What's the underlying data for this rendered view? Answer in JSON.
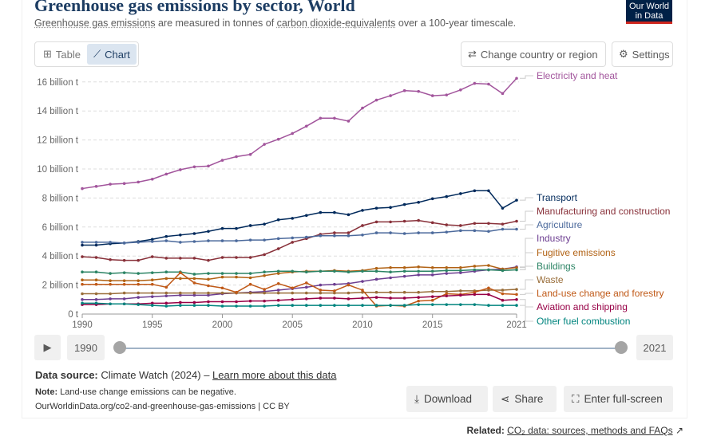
{
  "header": {
    "title": "Greenhouse gas emissions by sector, World",
    "subtitle_link1": "Greenhouse gas emissions",
    "subtitle_mid": " are measured in tonnes of ",
    "subtitle_link2": "carbon dioxide-equivalents",
    "subtitle_end": " over a 100-year timescale.",
    "logo_line1": "Our World",
    "logo_line2": "in Data"
  },
  "toolbar": {
    "table_label": "Table",
    "chart_label": "Chart",
    "change_region_label": "Change country or region",
    "settings_label": "Settings"
  },
  "timeline": {
    "start": "1990",
    "end": "2021"
  },
  "footer": {
    "source_label": "Data source:",
    "source_text": " Climate Watch (2024) – ",
    "learn_more": "Learn more about this data",
    "note_label": "Note:",
    "note_text": " Land-use change emissions can be negative.",
    "url": "OurWorldinData.org/co2-and-greenhouse-gas-emissions | CC BY",
    "download": "Download",
    "share": "Share",
    "fullscreen": "Enter full-screen",
    "related_label": "Related:",
    "related_link": "CO₂ data: sources, methods and FAQs"
  },
  "chart_data": {
    "type": "line",
    "title": "Greenhouse gas emissions by sector, World",
    "x": [
      1990,
      1991,
      1992,
      1993,
      1994,
      1995,
      1996,
      1997,
      1998,
      1999,
      2000,
      2001,
      2002,
      2003,
      2004,
      2005,
      2006,
      2007,
      2008,
      2009,
      2010,
      2011,
      2012,
      2013,
      2014,
      2015,
      2016,
      2017,
      2018,
      2019,
      2020,
      2021
    ],
    "x_ticks": [
      "1990",
      "1995",
      "2000",
      "2005",
      "2010",
      "2015",
      "2021"
    ],
    "y_ticks": [
      "0 t",
      "2 billion t",
      "4 billion t",
      "6 billion t",
      "8 billion t",
      "10 billion t",
      "12 billion t",
      "14 billion t",
      "16 billion t"
    ],
    "y_unit": "billion t",
    "ylim": [
      0,
      16.5
    ],
    "grid": "horizontal dashed",
    "legend": "right, inline labels",
    "series": [
      {
        "name": "Electricity and heat",
        "color": "#a2559c",
        "values": [
          8.65,
          8.8,
          8.95,
          9.0,
          9.1,
          9.3,
          9.65,
          9.95,
          10.15,
          10.2,
          10.6,
          10.85,
          11.0,
          11.7,
          12.05,
          12.45,
          12.95,
          13.5,
          13.5,
          13.3,
          14.2,
          14.75,
          15.05,
          15.4,
          15.35,
          15.05,
          15.1,
          15.45,
          15.9,
          15.85,
          15.2,
          16.25
        ]
      },
      {
        "name": "Transport",
        "color": "#00295b",
        "values": [
          4.75,
          4.75,
          4.85,
          4.9,
          5.0,
          5.15,
          5.35,
          5.45,
          5.55,
          5.7,
          5.9,
          5.9,
          6.1,
          6.2,
          6.5,
          6.6,
          6.8,
          7.0,
          7.0,
          6.85,
          7.15,
          7.3,
          7.35,
          7.55,
          7.7,
          7.95,
          8.1,
          8.3,
          8.5,
          8.5,
          7.3,
          7.85
        ]
      },
      {
        "name": "Manufacturing and construction",
        "color": "#883039",
        "values": [
          3.95,
          3.9,
          3.75,
          3.7,
          3.7,
          3.95,
          3.85,
          3.85,
          3.85,
          3.7,
          3.9,
          3.9,
          3.9,
          4.1,
          4.5,
          4.95,
          5.2,
          5.5,
          5.6,
          5.6,
          6.1,
          6.35,
          6.35,
          6.4,
          6.45,
          6.3,
          6.15,
          6.1,
          6.25,
          6.25,
          6.2,
          6.4
        ]
      },
      {
        "name": "Agriculture",
        "color": "#4c6a9c",
        "values": [
          4.95,
          4.95,
          4.95,
          4.9,
          4.95,
          5.0,
          5.05,
          4.95,
          5.0,
          5.05,
          5.05,
          5.05,
          5.1,
          5.1,
          5.2,
          5.25,
          5.3,
          5.4,
          5.4,
          5.4,
          5.45,
          5.6,
          5.6,
          5.55,
          5.6,
          5.6,
          5.65,
          5.75,
          5.75,
          5.7,
          5.85,
          5.85
        ]
      },
      {
        "name": "Industry",
        "color": "#6d3e91",
        "values": [
          1.0,
          1.0,
          1.05,
          1.05,
          1.15,
          1.2,
          1.25,
          1.3,
          1.3,
          1.3,
          1.4,
          1.45,
          1.5,
          1.55,
          1.65,
          1.75,
          1.85,
          2.0,
          2.05,
          2.1,
          2.25,
          2.4,
          2.5,
          2.6,
          2.7,
          2.7,
          2.8,
          2.85,
          2.95,
          3.05,
          3.1,
          3.25
        ]
      },
      {
        "name": "Fugitive emissions",
        "color": "#b16214",
        "values": [
          2.35,
          2.35,
          2.3,
          2.3,
          2.3,
          2.35,
          2.45,
          2.45,
          2.45,
          2.4,
          2.55,
          2.55,
          2.5,
          2.65,
          2.8,
          2.9,
          2.95,
          2.95,
          3.0,
          2.95,
          3.0,
          3.15,
          3.2,
          3.2,
          3.25,
          3.2,
          3.2,
          3.2,
          3.3,
          3.35,
          3.1,
          3.2
        ]
      },
      {
        "name": "Buildings",
        "color": "#2c8465",
        "values": [
          2.9,
          2.9,
          2.8,
          2.85,
          2.8,
          2.85,
          2.9,
          2.9,
          2.75,
          2.8,
          2.8,
          2.8,
          2.8,
          2.9,
          2.95,
          2.95,
          2.9,
          2.95,
          2.95,
          2.9,
          2.95,
          2.95,
          2.9,
          2.95,
          2.95,
          2.95,
          3.0,
          3.0,
          3.05,
          3.05,
          3.0,
          3.05
        ]
      },
      {
        "name": "Waste",
        "color": "#996d39",
        "values": [
          1.4,
          1.4,
          1.4,
          1.45,
          1.45,
          1.45,
          1.45,
          1.45,
          1.45,
          1.45,
          1.45,
          1.45,
          1.45,
          1.45,
          1.45,
          1.45,
          1.45,
          1.45,
          1.45,
          1.45,
          1.5,
          1.5,
          1.5,
          1.5,
          1.5,
          1.55,
          1.55,
          1.6,
          1.6,
          1.65,
          1.65,
          1.7
        ]
      },
      {
        "name": "Land-use change and forestry",
        "color": "#c05917",
        "values": [
          2.05,
          2.05,
          2.05,
          2.05,
          2.05,
          2.05,
          1.85,
          2.85,
          2.15,
          1.95,
          1.8,
          1.5,
          2.05,
          1.7,
          2.1,
          1.8,
          2.15,
          1.65,
          1.6,
          2.0,
          1.65,
          0.55,
          0.6,
          0.55,
          0.9,
          0.95,
          1.4,
          1.35,
          1.5,
          1.8,
          1.4,
          1.35
        ]
      },
      {
        "name": "Aviation and shipping",
        "color": "#970046",
        "values": [
          0.65,
          0.65,
          0.7,
          0.7,
          0.7,
          0.75,
          0.75,
          0.8,
          0.8,
          0.85,
          0.85,
          0.85,
          0.9,
          0.9,
          0.95,
          1.0,
          1.05,
          1.1,
          1.1,
          1.05,
          1.1,
          1.15,
          1.1,
          1.1,
          1.15,
          1.2,
          1.25,
          1.3,
          1.35,
          1.35,
          0.95,
          1.0
        ]
      },
      {
        "name": "Other fuel combustion",
        "color": "#00847e",
        "values": [
          0.75,
          0.75,
          0.7,
          0.7,
          0.65,
          0.6,
          0.55,
          0.6,
          0.6,
          0.6,
          0.55,
          0.55,
          0.55,
          0.55,
          0.6,
          0.6,
          0.6,
          0.6,
          0.6,
          0.6,
          0.6,
          0.6,
          0.6,
          0.6,
          0.65,
          0.65,
          0.65,
          0.65,
          0.65,
          0.6,
          0.6,
          0.6
        ]
      }
    ]
  }
}
